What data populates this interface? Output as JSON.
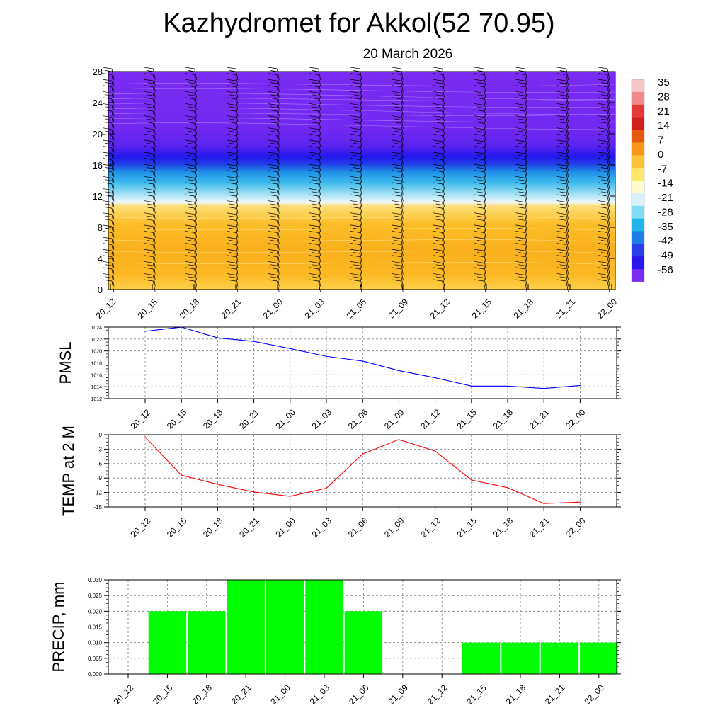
{
  "title": "Kazhydromet for Akkol(52 70.95)",
  "subtitle": "20 March 2026",
  "time_labels": [
    "20_12",
    "20_15",
    "20_18",
    "20_21",
    "21_00",
    "21_03",
    "21_06",
    "21_09",
    "21_12",
    "21_15",
    "21_18",
    "21_21",
    "22_00"
  ],
  "colors": {
    "pmsl_line": "#0000ff",
    "temp_line": "#ff0000",
    "precip_bar": "#00ff00",
    "grid": "#808080",
    "barb": "#000000"
  },
  "chart_data": [
    {
      "type": "heatmap",
      "name": "vertical-cross-section",
      "y_ticks": [
        0,
        4,
        8,
        12,
        16,
        20,
        24,
        28
      ],
      "ylim": [
        0,
        28
      ],
      "wind_barbs": true,
      "colorbar": {
        "labels": [
          "35",
          "28",
          "21",
          "14",
          "7",
          "0",
          "-7",
          "-14",
          "-21",
          "-28",
          "-35",
          "-42",
          "-49",
          "-56"
        ],
        "palette_top_to_bottom": [
          "#f6c6c6",
          "#f08a8a",
          "#e23a3a",
          "#d11e1e",
          "#e55a10",
          "#f7961a",
          "#fcc23a",
          "#ffe86a",
          "#fffbcf",
          "#d9f2fb",
          "#7fdcf2",
          "#1fb4ea",
          "#1e7ee6",
          "#2a3fe6",
          "#2a17f0",
          "#7a2cf0"
        ]
      },
      "bands": [
        {
          "from": 0,
          "to": 11,
          "color": "#fbbc22"
        },
        {
          "from": 11,
          "to": 16,
          "color": "#29b6ee"
        },
        {
          "from": 16,
          "to": 28,
          "color": "#7b2cf2"
        }
      ]
    },
    {
      "type": "line",
      "name": "pmsl",
      "ylabel": "PMSL",
      "ylim": [
        1012,
        1024
      ],
      "y_ticks": [
        1012,
        1014,
        1016,
        1018,
        1020,
        1022,
        1024
      ],
      "values": [
        1023.3,
        1024.0,
        1022.2,
        1021.6,
        1020.4,
        1019.1,
        1018.3,
        1016.7,
        1015.5,
        1014.1,
        1014.1,
        1013.7,
        1014.2
      ]
    },
    {
      "type": "line",
      "name": "temp",
      "ylabel": "TEMP at 2 M",
      "ylim": [
        -15,
        0
      ],
      "y_ticks": [
        -15,
        -12,
        -9,
        -6,
        -3,
        0
      ],
      "values": [
        -0.5,
        -8.4,
        -10.3,
        -11.9,
        -12.8,
        -11.1,
        -4.0,
        -1.0,
        -3.4,
        -9.4,
        -11.0,
        -14.3,
        -14.0
      ]
    },
    {
      "type": "bar",
      "name": "precip",
      "ylabel": "PRECIP, mm",
      "ylim": [
        0,
        0.03
      ],
      "y_ticks": [
        "0.000",
        "0.005",
        "0.010",
        "0.015",
        "0.020",
        "0.025",
        "0.030"
      ],
      "values": [
        0,
        0.02,
        0.02,
        0.03,
        0.03,
        0.03,
        0.02,
        0,
        0,
        0.01,
        0.01,
        0.01,
        0.01
      ]
    }
  ]
}
